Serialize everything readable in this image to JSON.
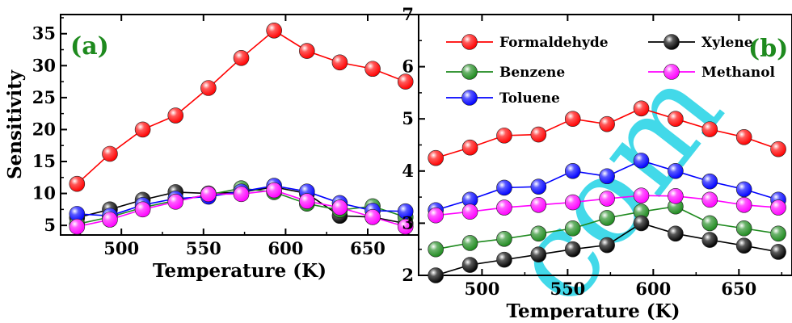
{
  "chart_data": [
    {
      "type": "line",
      "panel_tag": "(a)",
      "xlabel": "Temperature (K)",
      "ylabel": "Sensitivity",
      "xlim": [
        463,
        681
      ],
      "ylim": [
        3.5,
        38
      ],
      "xticks": [
        500,
        550,
        600,
        650
      ],
      "yticks": [
        5,
        10,
        15,
        20,
        25,
        30,
        35
      ],
      "x": [
        473,
        493,
        513,
        533,
        553,
        573,
        593,
        613,
        633,
        653,
        673
      ],
      "grid": false,
      "legend": null,
      "series": [
        {
          "name": "Formaldehyde",
          "color": "#ff0000",
          "values": [
            11.5,
            16.2,
            20.0,
            22.2,
            26.5,
            31.2,
            35.5,
            32.3,
            30.5,
            29.5,
            27.5
          ]
        },
        {
          "name": "Xylene",
          "color": "#000000",
          "values": [
            6.2,
            7.5,
            9.0,
            10.2,
            10.0,
            10.2,
            11.0,
            10.0,
            6.5,
            6.3,
            5.3
          ]
        },
        {
          "name": "Benzene",
          "color": "#1e8a1e",
          "values": [
            5.2,
            6.3,
            7.8,
            8.9,
            9.8,
            10.8,
            10.2,
            8.4,
            7.4,
            8.0,
            6.3
          ]
        },
        {
          "name": "Toluene",
          "color": "#0000ff",
          "values": [
            6.8,
            6.5,
            8.2,
            9.2,
            9.5,
            10.3,
            11.2,
            10.3,
            8.5,
            7.3,
            7.2
          ]
        },
        {
          "name": "Methanol",
          "color": "#ff00ff",
          "values": [
            4.8,
            5.9,
            7.5,
            8.7,
            9.9,
            9.9,
            10.5,
            8.8,
            7.8,
            6.3,
            4.8
          ]
        }
      ]
    },
    {
      "type": "line",
      "panel_tag": "(b)",
      "xlabel": "Temperature (K)",
      "ylabel": "",
      "xlim": [
        463,
        681
      ],
      "ylim": [
        2,
        7
      ],
      "xticks": [
        500,
        550,
        600,
        650
      ],
      "yticks": [
        2,
        3,
        4,
        5,
        6,
        7
      ],
      "x": [
        473,
        493,
        513,
        533,
        553,
        573,
        593,
        613,
        633,
        653,
        673
      ],
      "grid": false,
      "legend": "top-left",
      "series": [
        {
          "name": "Formaldehyde",
          "color": "#ff0000",
          "values": [
            4.25,
            4.45,
            4.68,
            4.7,
            5.0,
            4.9,
            5.2,
            5.0,
            4.8,
            4.65,
            4.42
          ]
        },
        {
          "name": "Benzene",
          "color": "#1e8a1e",
          "values": [
            2.5,
            2.62,
            2.7,
            2.8,
            2.9,
            3.1,
            3.22,
            3.32,
            3.0,
            2.9,
            2.8
          ]
        },
        {
          "name": "Toluene",
          "color": "#0000ff",
          "values": [
            3.25,
            3.45,
            3.68,
            3.7,
            4.0,
            3.9,
            4.2,
            4.0,
            3.8,
            3.65,
            3.45
          ]
        },
        {
          "name": "Xylene",
          "color": "#000000",
          "values": [
            2.0,
            2.2,
            2.3,
            2.4,
            2.5,
            2.58,
            3.0,
            2.8,
            2.68,
            2.57,
            2.45
          ]
        },
        {
          "name": "Methanol",
          "color": "#ff00ff",
          "values": [
            3.15,
            3.22,
            3.3,
            3.35,
            3.4,
            3.47,
            3.53,
            3.52,
            3.45,
            3.35,
            3.3
          ]
        }
      ]
    }
  ]
}
